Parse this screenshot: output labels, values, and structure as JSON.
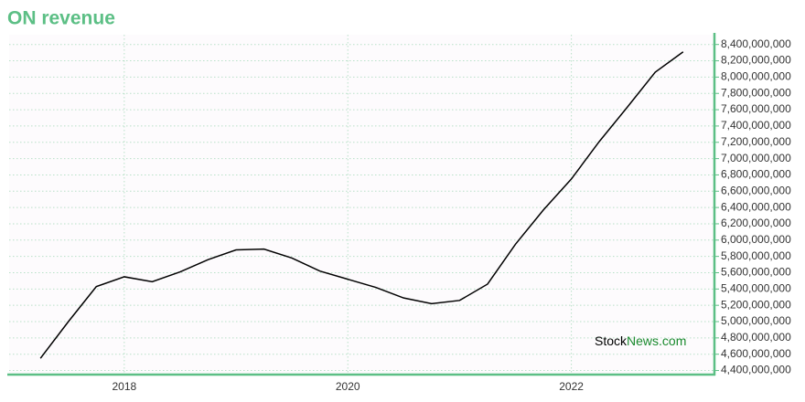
{
  "chart_data": {
    "type": "line",
    "title": "ON revenue",
    "watermark": [
      "Stock",
      "News.com"
    ],
    "x": [
      2017.25,
      2017.5,
      2017.75,
      2018,
      2018.25,
      2018.5,
      2018.75,
      2019,
      2019.25,
      2019.5,
      2019.75,
      2020,
      2020.25,
      2020.5,
      2020.75,
      2021,
      2021.25,
      2021.5,
      2021.75,
      2022,
      2022.25,
      2022.5,
      2022.75,
      2023
    ],
    "series": [
      {
        "color": "#000000",
        "values": [
          4550000000,
          5000000000,
          5430000000,
          5550000000,
          5490000000,
          5610000000,
          5760000000,
          5880000000,
          5890000000,
          5780000000,
          5620000000,
          5520000000,
          5420000000,
          5290000000,
          5220000000,
          5260000000,
          5460000000,
          5950000000,
          6370000000,
          6750000000,
          7210000000,
          7630000000,
          8060000000,
          8310000000
        ]
      }
    ],
    "xlim": [
      2016.97,
      2023.28
    ],
    "xticks": [
      2018,
      2020,
      2022
    ],
    "ylim": [
      4350000000,
      8520000000
    ],
    "yticks": [
      {
        "value": 4400000000,
        "label": "4,400,000,000"
      },
      {
        "value": 4600000000,
        "label": "4,600,000,000"
      },
      {
        "value": 4800000000,
        "label": "4,800,000,000"
      },
      {
        "value": 5000000000,
        "label": "5,000,000,000"
      },
      {
        "value": 5200000000,
        "label": "5,200,000,000"
      },
      {
        "value": 5400000000,
        "label": "5,400,000,000"
      },
      {
        "value": 5600000000,
        "label": "5,600,000,000"
      },
      {
        "value": 5800000000,
        "label": "5,800,000,000"
      },
      {
        "value": 6000000000,
        "label": "6,000,000,000"
      },
      {
        "value": 6200000000,
        "label": "6,200,000,000"
      },
      {
        "value": 6400000000,
        "label": "6,400,000,000"
      },
      {
        "value": 6600000000,
        "label": "6,600,000,000"
      },
      {
        "value": 6800000000,
        "label": "6,800,000,000"
      },
      {
        "value": 7000000000,
        "label": "7,000,000,000"
      },
      {
        "value": 7200000000,
        "label": "7,200,000,000"
      },
      {
        "value": 7400000000,
        "label": "7,400,000,000"
      },
      {
        "value": 7600000000,
        "label": "7,600,000,000"
      },
      {
        "value": 7800000000,
        "label": "7,800,000,000"
      },
      {
        "value": 8000000000,
        "label": "8,000,000,000"
      },
      {
        "value": 8200000000,
        "label": "8,200,000,000"
      },
      {
        "value": 8400000000,
        "label": "8,400,000,000"
      }
    ],
    "grid": true
  }
}
